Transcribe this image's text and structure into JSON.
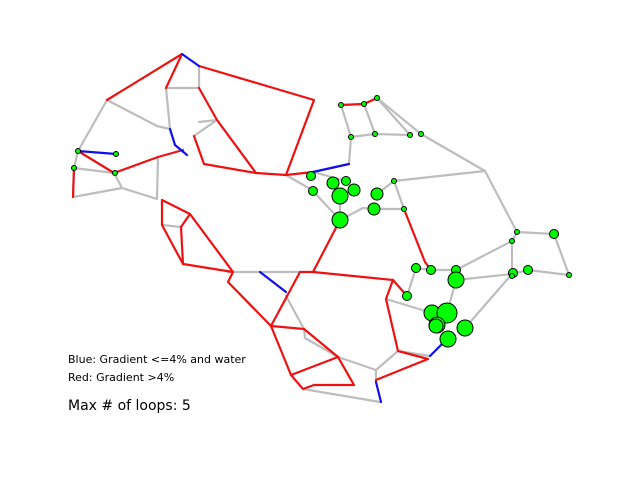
{
  "legend": {
    "blue": "Blue: Gradient <=4% and water",
    "red": "Red: Gradient >4%"
  },
  "loops_label": "Max # of loops: 5",
  "colors": {
    "gray": "#bdbdbd",
    "red": "#ee1111",
    "blue": "#1010ee",
    "node_fill": "#00ff00",
    "node_stroke": "#000000"
  }
}
